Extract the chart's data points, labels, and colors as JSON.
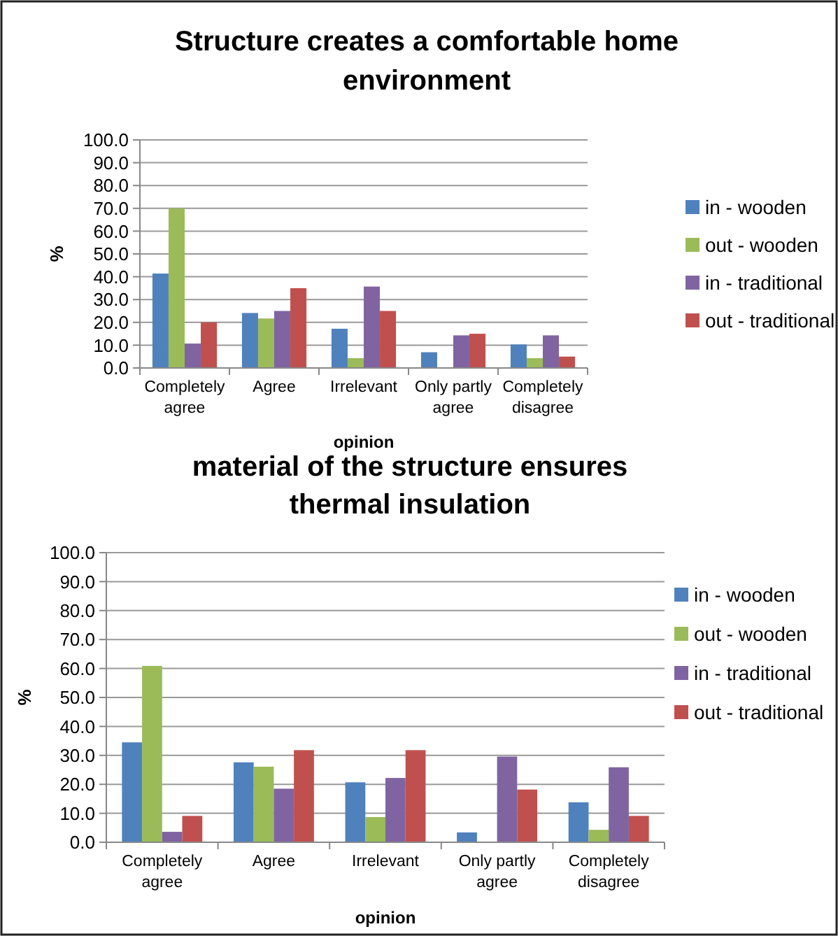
{
  "chart_data": [
    {
      "type": "bar",
      "title": "Structure creates a comfortable home environment",
      "xlabel": "opinion",
      "ylabel": "%",
      "categories": [
        "Completely agree",
        "Agree",
        "Irrelevant",
        "Only partly agree",
        "Completely disagree"
      ],
      "series": [
        {
          "name": "in - wooden",
          "color": "#4f81bd",
          "values": [
            41.4,
            24.1,
            17.2,
            6.9,
            10.3
          ]
        },
        {
          "name": "out - wooden",
          "color": "#9bbb59",
          "values": [
            70.0,
            21.7,
            4.3,
            0,
            4.3
          ]
        },
        {
          "name": "in - traditional",
          "color": "#8064a2",
          "values": [
            10.7,
            25.0,
            35.7,
            14.3,
            14.3
          ]
        },
        {
          "name": "out - traditional",
          "color": "#c0504d",
          "values": [
            20.0,
            35.0,
            25.0,
            15.0,
            5.0
          ]
        }
      ],
      "ylim": [
        0,
        100
      ],
      "yticks": [
        {
          "value": 0,
          "label": "0.0"
        },
        {
          "value": 10,
          "label": "10.0"
        },
        {
          "value": 20,
          "label": "20.0"
        },
        {
          "value": 30,
          "label": "30.0"
        },
        {
          "value": 40,
          "label": "40.0"
        },
        {
          "value": 50,
          "label": "50.0"
        },
        {
          "value": 60,
          "label": "60.0"
        },
        {
          "value": 70,
          "label": "70.0"
        },
        {
          "value": 80,
          "label": "80.0"
        },
        {
          "value": 90,
          "label": "90.0"
        },
        {
          "value": 100,
          "label": "100.0"
        }
      ],
      "grid": "y",
      "legend": "right"
    },
    {
      "type": "bar",
      "title": "material of the structure ensures thermal insulation",
      "xlabel": "opinion",
      "ylabel": "%",
      "categories": [
        "Completely agree",
        "Agree",
        "Irrelevant",
        "Only partly agree",
        "Completely disagree"
      ],
      "series": [
        {
          "name": "in - wooden",
          "color": "#4f81bd",
          "values": [
            34.5,
            27.6,
            20.7,
            3.4,
            13.8
          ]
        },
        {
          "name": "out - wooden",
          "color": "#9bbb59",
          "values": [
            60.9,
            26.1,
            8.7,
            0,
            4.3
          ]
        },
        {
          "name": "in - traditional",
          "color": "#8064a2",
          "values": [
            3.6,
            18.5,
            22.2,
            29.6,
            25.9
          ]
        },
        {
          "name": "out - traditional",
          "color": "#c0504d",
          "values": [
            9.1,
            31.8,
            31.8,
            18.2,
            9.1
          ]
        }
      ],
      "ylim": [
        0,
        100
      ],
      "yticks": [
        {
          "value": 0,
          "label": "0.0"
        },
        {
          "value": 10,
          "label": "10.0"
        },
        {
          "value": 20,
          "label": "20.0"
        },
        {
          "value": 30,
          "label": "30.0"
        },
        {
          "value": 40,
          "label": "40.0"
        },
        {
          "value": 50,
          "label": "50.0"
        },
        {
          "value": 60,
          "label": "60.0"
        },
        {
          "value": 70,
          "label": "70.0"
        },
        {
          "value": 80,
          "label": "80.0"
        },
        {
          "value": 90,
          "label": "90.0"
        },
        {
          "value": 100,
          "label": "100.0"
        }
      ],
      "grid": "y",
      "legend": "right"
    }
  ]
}
